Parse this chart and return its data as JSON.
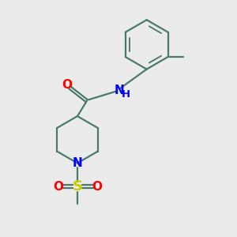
{
  "background_color": "#ebebeb",
  "bond_color": "#4a7a6a",
  "atom_colors": {
    "O": "#ff0000",
    "N": "#0000ff",
    "S": "#cccc00",
    "C": "#333333",
    "H": "#0000ff"
  },
  "line_width": 1.6,
  "font_size_atoms": 11,
  "font_size_small": 8.5
}
